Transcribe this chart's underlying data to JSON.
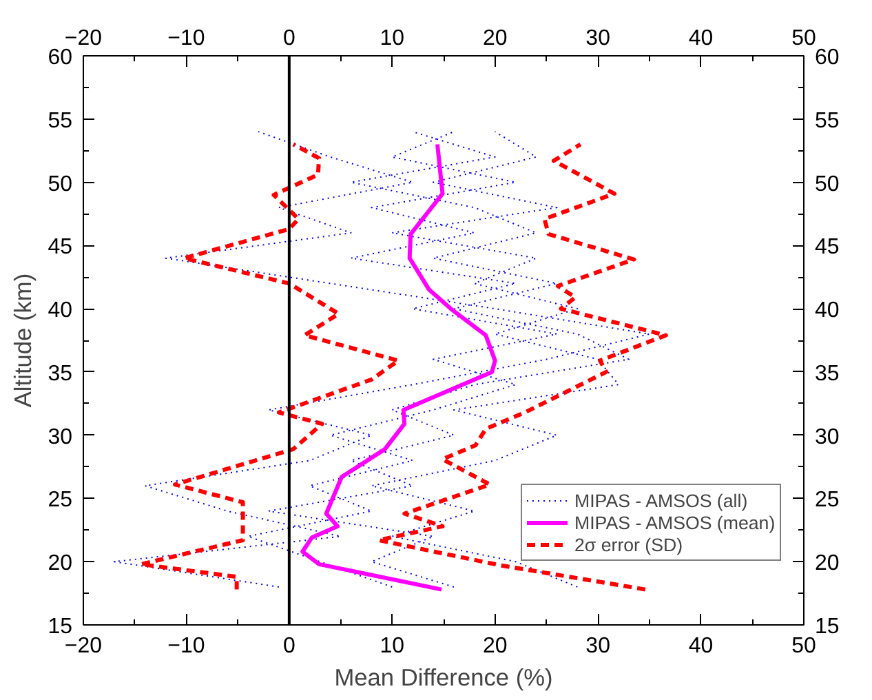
{
  "chart_data": {
    "type": "line",
    "orientation": "horizontal",
    "xlabel": "Mean Difference (%)",
    "ylabel": "Altitude (km)",
    "xlim": [
      -20,
      50
    ],
    "xticks": [
      -20,
      -10,
      0,
      10,
      20,
      30,
      40,
      50
    ],
    "x2lim": [
      -20,
      50
    ],
    "x2ticks": [
      -20,
      -10,
      0,
      10,
      20,
      30,
      40,
      50
    ],
    "ylim": [
      15,
      60
    ],
    "yticks": [
      15,
      20,
      25,
      30,
      35,
      40,
      45,
      50,
      55,
      60
    ],
    "y2lim": [
      15,
      60
    ],
    "y2ticks": [
      15,
      20,
      25,
      30,
      35,
      40,
      45,
      50,
      55,
      60
    ],
    "grid": false,
    "legend": "right",
    "ref_lines": [
      {
        "axis": "x",
        "value": 0,
        "color": "#000000"
      }
    ],
    "series": [
      {
        "name": "MIPAS - AMSOS (all)",
        "color": "#0000ff",
        "line_style": "dotted",
        "x": [
          18,
          20,
          22,
          24,
          26,
          28,
          30,
          32,
          34,
          36,
          38,
          40,
          42,
          44,
          46,
          48,
          50,
          52,
          54
        ],
        "values": [
          -1,
          -17,
          5,
          -6,
          -14,
          2,
          8,
          -2,
          12,
          25,
          35,
          20,
          4,
          -12,
          6,
          -1,
          12,
          4,
          -3
        ]
      },
      {
        "color": "#0000ff",
        "line_style": "dotted",
        "x": [
          18,
          20,
          22,
          24,
          26,
          28,
          30,
          32,
          34,
          36,
          38,
          40,
          42,
          44,
          46,
          48,
          50,
          52,
          54
        ],
        "values": [
          28,
          22,
          10,
          18,
          8,
          20,
          26,
          16,
          32,
          30,
          20,
          28,
          18,
          24,
          10,
          26,
          14,
          24,
          20
        ]
      },
      {
        "color": "#0000ff",
        "line_style": "dotted",
        "x": [
          18,
          20,
          22,
          24,
          26,
          28,
          30,
          32,
          34,
          36,
          38,
          40,
          42,
          44,
          46,
          48,
          50,
          52,
          54
        ],
        "values": [
          10,
          3,
          -4,
          8,
          2,
          12,
          4,
          14,
          22,
          14,
          26,
          12,
          22,
          6,
          18,
          8,
          22,
          10,
          16
        ]
      },
      {
        "color": "#0000ff",
        "line_style": "dotted",
        "x": [
          18,
          20,
          22,
          24,
          26,
          28,
          30,
          32,
          34,
          36,
          38,
          40,
          42,
          44,
          46,
          48,
          50,
          52,
          54
        ],
        "values": [
          16,
          8,
          14,
          -2,
          12,
          6,
          16,
          10,
          18,
          33,
          28,
          16,
          26,
          14,
          24,
          18,
          6,
          20,
          12
        ]
      },
      {
        "name": "MIPAS - AMSOS (mean)",
        "color": "#ff00ff",
        "line_style": "solid",
        "x": [
          17.8,
          19.8,
          20.8,
          21.9,
          22.8,
          23.8,
          26.7,
          28.9,
          30.9,
          32.0,
          35.0,
          35.9,
          37.9,
          40.0,
          41.5,
          44.0,
          45.9,
          49.1,
          53.0
        ],
        "values": [
          14.8,
          2.9,
          1.3,
          2.2,
          4.7,
          3.6,
          5.1,
          9.3,
          11.2,
          11.1,
          19.7,
          20.0,
          19.1,
          15.7,
          13.6,
          11.7,
          11.8,
          14.9,
          14.4
        ]
      },
      {
        "name": "2σ error (SD)",
        "color": "#ff0000",
        "line_style": "dashed",
        "x": [
          17.8,
          18.8,
          19.8,
          21.7,
          24.7,
          26.1,
          28.9,
          30.9,
          31.8,
          34.4,
          35.9,
          37.9,
          39.6,
          42.0,
          44.0,
          46.3,
          47.1,
          49.0,
          50.6,
          51.9,
          53.0
        ],
        "values": [
          -5.1,
          -5.1,
          -14.4,
          -4.5,
          -4.5,
          -11.1,
          0.4,
          3.2,
          -1.0,
          8.0,
          10.6,
          1.5,
          4.8,
          0.0,
          -10.2,
          0.0,
          0.9,
          -1.5,
          2.8,
          2.9,
          0.4
        ]
      },
      {
        "color": "#ff0000",
        "line_style": "dashed",
        "x": [
          17.8,
          19.7,
          21.7,
          22.8,
          23.8,
          26.1,
          28.1,
          29.2,
          30.5,
          31.8,
          35.0,
          35.9,
          37.9,
          40.0,
          40.9,
          41.8,
          43.9,
          45.9,
          47.1,
          49.1,
          51.7,
          53.0
        ],
        "values": [
          34.6,
          20.6,
          8.7,
          14.9,
          11.2,
          19.5,
          14.9,
          18.1,
          19.1,
          22.9,
          30.8,
          30.2,
          36.6,
          26.4,
          27.8,
          26.1,
          33.5,
          25.2,
          24.8,
          31.6,
          25.7,
          28.3
        ]
      }
    ]
  }
}
